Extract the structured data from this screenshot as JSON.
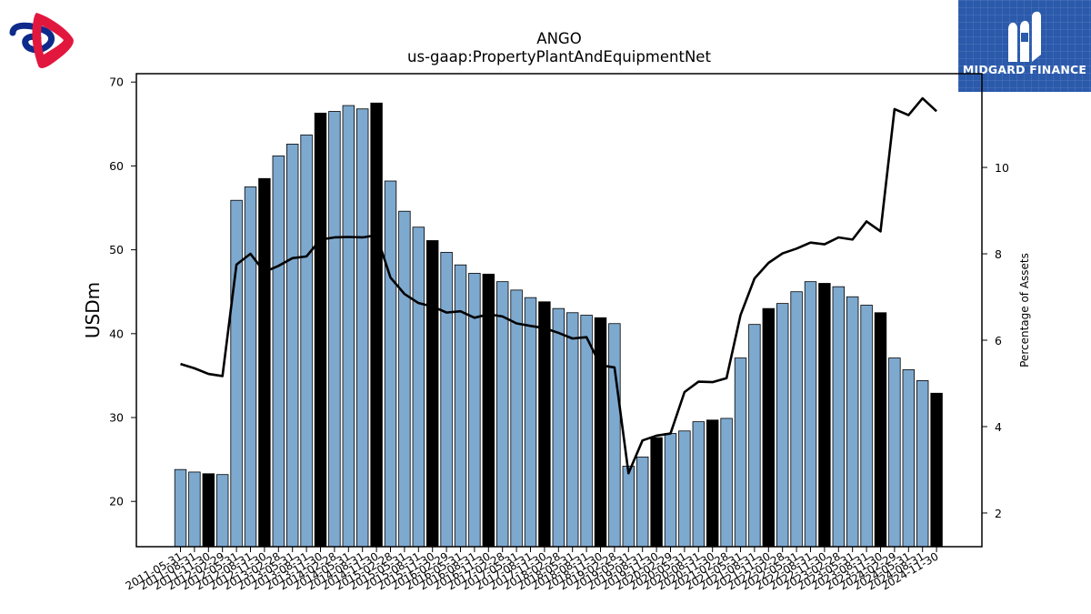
{
  "chart_data": {
    "type": "bar",
    "title": "ANGO",
    "subtitle": "us-gaap:PropertyPlantAndEquipmentNet",
    "ylabel": "USDm",
    "y2label": "Percentage of Assets",
    "ylim": [
      14.6,
      71
    ],
    "y2lim": [
      1.22,
      12.17
    ],
    "yticks": [
      20,
      30,
      40,
      50,
      60,
      70
    ],
    "y2ticks": [
      2,
      4,
      6,
      8,
      10
    ],
    "categories": [
      "2011-05-31",
      "2011-08-31",
      "2011-11-30",
      "2012-02-29",
      "2012-05-31",
      "2012-08-31",
      "2012-11-30",
      "2013-02-28",
      "2013-05-31",
      "2013-08-31",
      "2013-11-30",
      "2014-02-28",
      "2014-05-31",
      "2014-08-31",
      "2014-11-30",
      "2015-02-28",
      "2015-05-31",
      "2015-08-31",
      "2015-11-30",
      "2016-02-29",
      "2016-05-31",
      "2016-08-31",
      "2016-11-30",
      "2017-02-28",
      "2017-05-31",
      "2017-08-31",
      "2017-11-30",
      "2018-02-28",
      "2018-05-31",
      "2018-08-31",
      "2018-11-30",
      "2019-02-28",
      "2019-05-31",
      "2019-08-31",
      "2019-11-30",
      "2020-02-29",
      "2020-05-31",
      "2020-08-31",
      "2020-11-30",
      "2021-02-28",
      "2021-05-31",
      "2021-08-31",
      "2021-11-30",
      "2022-02-28",
      "2022-05-31",
      "2022-08-31",
      "2022-11-30",
      "2023-02-28",
      "2023-05-31",
      "2023-08-31",
      "2023-11-30",
      "2024-02-29",
      "2024-05-31",
      "2024-08-31",
      "2024-11-30"
    ],
    "series": [
      {
        "kind": "bar",
        "values": [
          23.8,
          23.5,
          23.3,
          23.2,
          55.9,
          57.5,
          58.5,
          61.2,
          62.6,
          63.7,
          66.3,
          66.5,
          67.2,
          66.8,
          67.5,
          58.2,
          54.6,
          52.7,
          51.1,
          49.7,
          48.2,
          47.2,
          47.1,
          46.2,
          45.2,
          44.3,
          43.8,
          43.0,
          42.5,
          42.2,
          41.9,
          41.2,
          24.2,
          25.3,
          27.6,
          28.1,
          28.4,
          29.5,
          29.7,
          29.9,
          37.1,
          41.1,
          43.0,
          43.6,
          45.0,
          46.2,
          46.0,
          45.6,
          44.4,
          43.4,
          42.5,
          37.1,
          35.7,
          34.4,
          32.9
        ],
        "fiscal_year_end_indices": [
          2,
          6,
          10,
          14,
          18,
          22,
          26,
          30,
          34,
          38,
          42,
          46,
          50,
          54
        ]
      },
      {
        "kind": "line",
        "axis": "right",
        "values": [
          5.45,
          5.35,
          5.22,
          5.17,
          7.75,
          8.0,
          7.58,
          7.72,
          7.9,
          7.94,
          8.33,
          8.38,
          8.39,
          8.38,
          8.43,
          7.45,
          7.07,
          6.86,
          6.78,
          6.64,
          6.67,
          6.52,
          6.6,
          6.55,
          6.39,
          6.33,
          6.28,
          6.17,
          6.04,
          6.07,
          5.42,
          5.37,
          2.92,
          3.68,
          3.79,
          3.84,
          4.8,
          5.04,
          5.03,
          5.12,
          6.58,
          7.43,
          7.79,
          8.01,
          8.12,
          8.26,
          8.22,
          8.38,
          8.33,
          8.75,
          8.52,
          11.35,
          11.21,
          11.6,
          11.3
        ]
      }
    ],
    "colors": {
      "bar": "#7ea9cf",
      "bar_highlight": "#000000",
      "line": "#000000",
      "brand_bg": "#2b5aab",
      "logo_red": "#e2173e",
      "logo_blue": "#0e2a8a"
    },
    "grid": false,
    "legend": "none"
  },
  "branding": {
    "company": "MIDGARD FINANCE",
    "left_logo_icon": "interlocking-rings-logo-icon",
    "right_logo_icon": "midgard-finance-logo-icon"
  }
}
